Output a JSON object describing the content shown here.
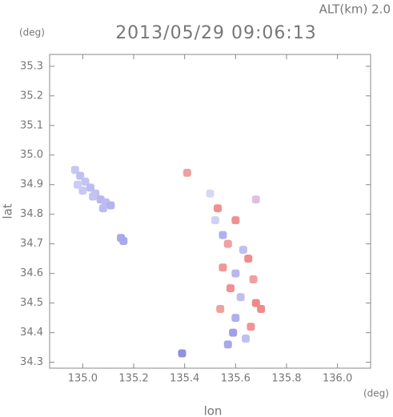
{
  "chart_data": {
    "type": "scatter",
    "title": "2013/05/29 09:06:13",
    "subtitle": "ALT(km) 2.0",
    "x_label": "lon",
    "y_label": "lat",
    "x_unit": "(deg)",
    "y_unit": "(deg)",
    "xlim": [
      134.87,
      136.13
    ],
    "ylim": [
      34.28,
      35.34
    ],
    "xticks": [
      {
        "value": 135,
        "label": "135.0"
      },
      135.2,
      135.4,
      135.6,
      135.8,
      {
        "value": 136,
        "label": "136.0"
      }
    ],
    "yticks": [
      34.3,
      34.4,
      34.5,
      34.6,
      34.7,
      34.8,
      34.9,
      {
        "value": 35,
        "label": "35.0"
      },
      35.1,
      35.2,
      35.3
    ],
    "x": [
      134.97,
      134.99,
      135.01,
      135.03,
      135.05,
      135.07,
      135.09,
      135.11,
      135.0,
      135.04,
      135.08,
      134.98,
      135.15,
      135.16,
      135.41,
      135.39,
      135.5,
      135.53,
      135.52,
      135.55,
      135.57,
      135.6,
      135.63,
      135.65,
      135.55,
      135.6,
      135.67,
      135.58,
      135.62,
      135.68,
      135.54,
      135.6,
      135.66,
      135.59,
      135.64,
      135.57,
      135.7,
      135.68
    ],
    "y": [
      34.95,
      34.93,
      34.91,
      34.89,
      34.87,
      34.85,
      34.84,
      34.83,
      34.88,
      34.86,
      34.82,
      34.9,
      34.72,
      34.71,
      34.94,
      34.33,
      34.87,
      34.82,
      34.78,
      34.73,
      34.7,
      34.78,
      34.68,
      34.65,
      34.62,
      34.6,
      34.58,
      34.55,
      34.52,
      34.5,
      34.48,
      34.45,
      34.42,
      34.4,
      34.38,
      34.36,
      34.48,
      34.85
    ],
    "colors": [
      "#c8c8f4",
      "#c0c0f2",
      "#c4c4f2",
      "#bcbcf0",
      "#c0c0f2",
      "#b8b8ee",
      "#bcbcf0",
      "#b4b4ee",
      "#c8c8f4",
      "#c4c4f2",
      "#bcbcf0",
      "#ccccf6",
      "#a8a8ea",
      "#a8a8ea",
      "#f0a0a0",
      "#9090e0",
      "#d8d8f4",
      "#f09090",
      "#d0d0f4",
      "#b0b0ec",
      "#f0a0a0",
      "#f09090",
      "#c0c0f0",
      "#f08c8c",
      "#f09898",
      "#b8b8ee",
      "#f0a0a0",
      "#f09090",
      "#c0c0f0",
      "#f08888",
      "#f0a0a0",
      "#b0b0ec",
      "#f09494",
      "#a0a0e8",
      "#c0c0f0",
      "#a8a8ea",
      "#f08c8c",
      "#e0c0e0"
    ]
  }
}
